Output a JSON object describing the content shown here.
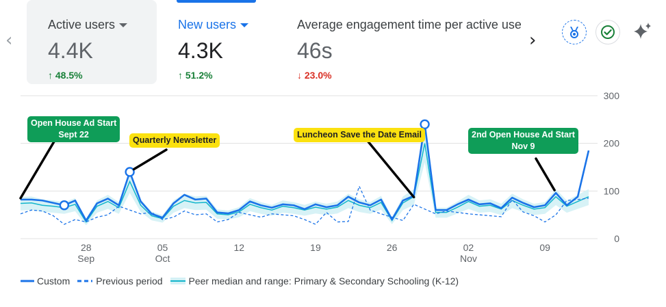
{
  "metrics": [
    {
      "label": "Active users",
      "value": "4.4K",
      "change": "48.5%",
      "direction": "up",
      "has_dropdown": true,
      "selected": true
    },
    {
      "label": "New users",
      "value": "4.3K",
      "change": "51.2%",
      "direction": "up",
      "has_dropdown": true,
      "selected": false
    },
    {
      "label": "Average engagement time per active use",
      "value": "46s",
      "change": "23.0%",
      "direction": "down",
      "has_dropdown": false,
      "selected": false
    }
  ],
  "toolbar_icons": [
    "badge-icon",
    "check-circle-icon",
    "sparkle-icon"
  ],
  "chart_data": {
    "type": "line",
    "x_tick_labels": [
      {
        "day": "28",
        "month": "Sep"
      },
      {
        "day": "05",
        "month": "Oct"
      },
      {
        "day": "12",
        "month": ""
      },
      {
        "day": "19",
        "month": ""
      },
      {
        "day": "26",
        "month": ""
      },
      {
        "day": "02",
        "month": "Nov"
      },
      {
        "day": "09",
        "month": ""
      }
    ],
    "y_ticks": [
      0,
      100,
      200,
      300
    ],
    "ylim": [
      0,
      300
    ],
    "x_range": [
      "2023-09-22",
      "2023-11-12"
    ],
    "series": [
      {
        "name": "Custom",
        "style": "solid",
        "color": "#1a73e8",
        "values": [
          82,
          82,
          80,
          75,
          70,
          80,
          38,
          74,
          84,
          70,
          140,
          78,
          52,
          44,
          74,
          92,
          82,
          84,
          55,
          53,
          60,
          78,
          70,
          65,
          72,
          70,
          62,
          72,
          66,
          70,
          88,
          76,
          70,
          82,
          40,
          80,
          90,
          240,
          60,
          60,
          72,
          82,
          72,
          74,
          64,
          86,
          75,
          66,
          70,
          96,
          70,
          88,
          185
        ]
      },
      {
        "name": "Previous period",
        "style": "dashed",
        "color": "#1a73e8",
        "values": [
          52,
          60,
          58,
          48,
          30,
          40,
          35,
          45,
          50,
          68,
          60,
          52,
          55,
          40,
          45,
          58,
          50,
          52,
          35,
          40,
          55,
          50,
          45,
          52,
          50,
          48,
          40,
          30,
          55,
          35,
          36,
          110,
          60,
          52,
          45,
          38,
          72,
          62,
          52,
          58,
          55,
          52,
          50,
          48,
          46,
          82,
          56,
          48,
          35,
          50,
          80,
          82,
          85
        ]
      },
      {
        "name": "Peer median and range: Primary & Secondary Schooling (K-12)",
        "style": "band",
        "color": "#12b5cb",
        "values": [
          74,
          75,
          70,
          68,
          65,
          72,
          35,
          68,
          78,
          65,
          120,
          70,
          48,
          42,
          68,
          80,
          75,
          76,
          52,
          50,
          56,
          72,
          65,
          60,
          68,
          65,
          60,
          66,
          62,
          66,
          80,
          70,
          65,
          76,
          38,
          75,
          88,
          200,
          55,
          55,
          66,
          78,
          68,
          70,
          62,
          80,
          70,
          62,
          65,
          88,
          68,
          78,
          88
        ]
      }
    ],
    "annotations": [
      {
        "text": "Open House Ad Start",
        "sub": "Sept 22",
        "color": "green"
      },
      {
        "text": "Quarterly Newsletter",
        "sub": "",
        "color": "yellow"
      },
      {
        "text": "Luncheon Save the Date Email",
        "sub": "",
        "color": "yellow"
      },
      {
        "text": "2nd Open House Ad Start",
        "sub": "Nov 9",
        "color": "green"
      }
    ]
  },
  "legend": [
    {
      "label": "Custom",
      "style": "solid"
    },
    {
      "label": "Previous period",
      "style": "dashed"
    },
    {
      "label": "Peer median and range: Primary & Secondary Schooling (K-12)",
      "style": "band"
    }
  ],
  "colors": {
    "accent": "#1a73e8",
    "peer": "#12b5cb",
    "up": "#188038",
    "down": "#d93025",
    "annot_green": "#0f9d58",
    "annot_yellow": "#fbe10f"
  }
}
